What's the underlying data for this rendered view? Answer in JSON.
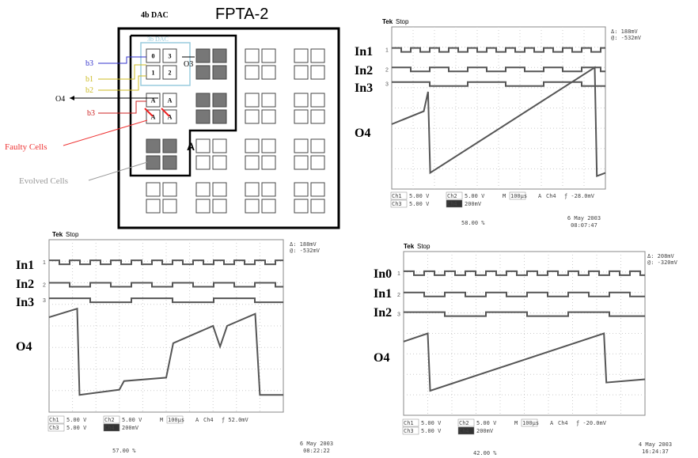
{
  "diagram": {
    "title": "FPTA-2",
    "dac4_label": "4b DAC",
    "dac3_label": "3b DAC",
    "inputs": [
      "b3",
      "b1",
      "b2"
    ],
    "output_left": "O4",
    "output_o3": "O3",
    "fault_input": "b3",
    "cells": [
      "0",
      "3",
      "1",
      "2",
      "A",
      "A",
      "A",
      "A"
    ],
    "node_label": "A",
    "faulty_label": "Faulty Cells",
    "evolved_label": "Evolved Cells"
  },
  "scopes": [
    {
      "brand": "Tek",
      "status": "Stop",
      "delta": "Δ:  188mV",
      "cursor": "@: -532mV",
      "signals": [
        "In1",
        "In2",
        "In3",
        "O4"
      ],
      "channel_markers": [
        "1",
        "2",
        "3"
      ],
      "ch1": "Ch1",
      "ch1_scale": "5.00 V",
      "ch2": "Ch2",
      "ch2_scale": "5.00 V",
      "timebase_label": "M",
      "timebase": "100µs",
      "trigger_label": "A",
      "trigger_source": "Ch4",
      "trigger_level": "ƒ -28.0mV",
      "ch3": "Ch3",
      "ch3_scale": "5.00 V",
      "ch4": "Ch4",
      "ch4_scale": "200mV",
      "trigger_position": "58.00 %",
      "date": "6 May 2003",
      "time": "08:07:47"
    },
    {
      "brand": "Tek",
      "status": "Stop",
      "delta": "Δ:  188mV",
      "cursor": "@: -532mV",
      "signals": [
        "In1",
        "In2",
        "In3",
        "O4"
      ],
      "channel_markers": [
        "1",
        "2",
        "3"
      ],
      "ch1": "Ch1",
      "ch1_scale": "5.00 V",
      "ch2": "Ch2",
      "ch2_scale": "5.00 V",
      "timebase_label": "M",
      "timebase": "100µs",
      "trigger_label": "A",
      "trigger_source": "Ch4",
      "trigger_level": "ƒ 52.0mV",
      "ch3": "Ch3",
      "ch3_scale": "5.00 V",
      "ch4": "Ch4",
      "ch4_scale": "200mV",
      "trigger_position": "57.00 %",
      "date": "6 May 2003",
      "time": "08:22:22"
    },
    {
      "brand": "Tek",
      "status": "Stop",
      "delta": "Δ:  208mV",
      "cursor": "@: -320mV",
      "signals": [
        "In0",
        "In1",
        "In2",
        "O4"
      ],
      "channel_markers": [
        "1",
        "2",
        "3"
      ],
      "ch1": "Ch1",
      "ch1_scale": "5.00 V",
      "ch2": "Ch2",
      "ch2_scale": "5.00 V",
      "timebase_label": "M",
      "timebase": "100µs",
      "trigger_label": "A",
      "trigger_source": "Ch4",
      "trigger_level": "ƒ -20.0mV",
      "ch3": "Ch3",
      "ch3_scale": "5.00 V",
      "ch4": "Ch4",
      "ch4_scale": "200mV",
      "trigger_position": "42.00 %",
      "date": "4 May 2003",
      "time": "16:24:37"
    }
  ]
}
